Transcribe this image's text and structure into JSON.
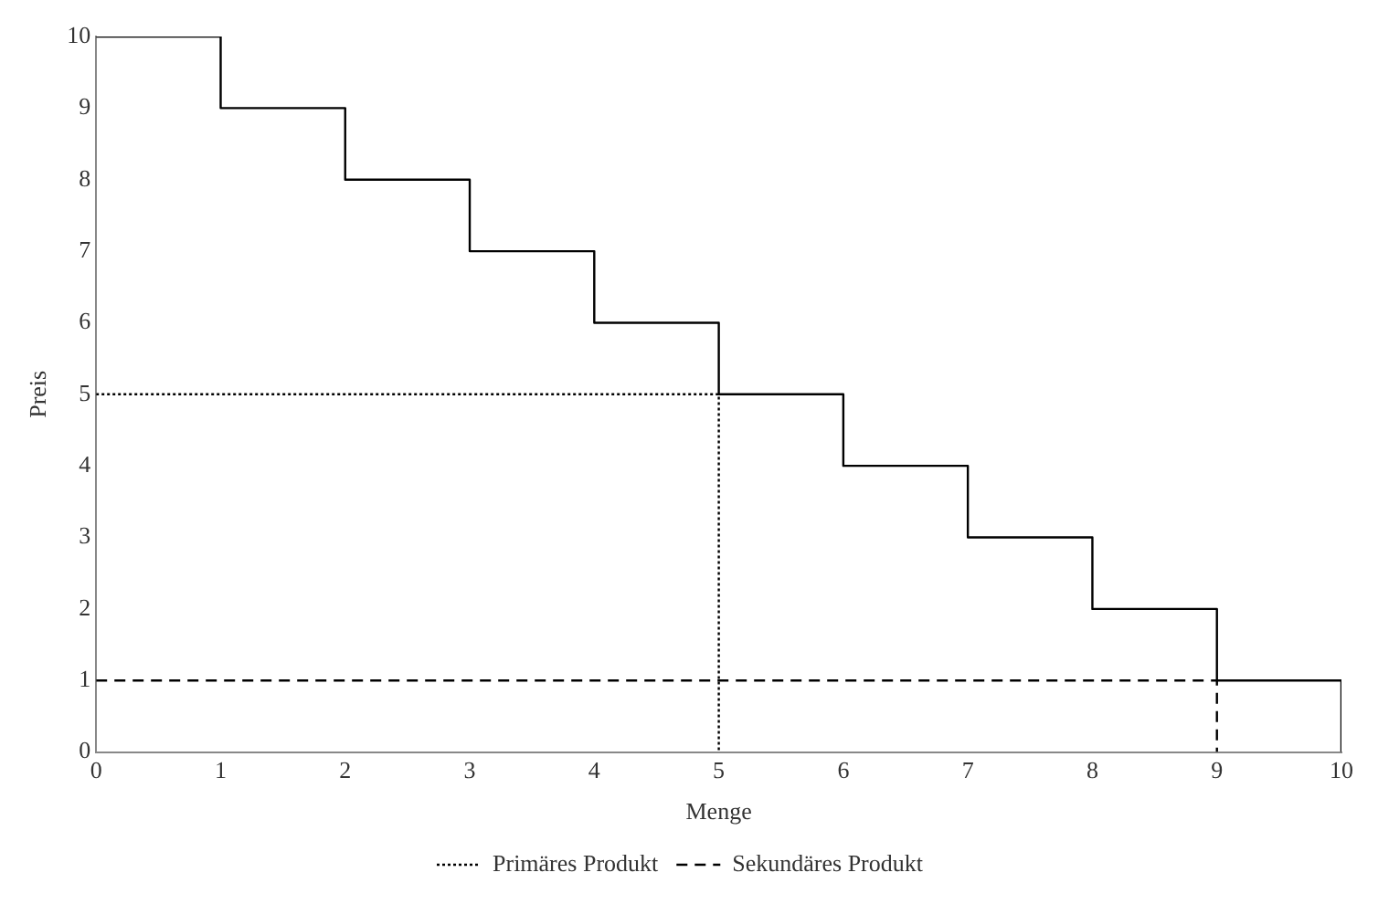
{
  "chart_data": {
    "type": "step",
    "xlabel": "Menge",
    "ylabel": "Preis",
    "xlim": [
      0,
      10
    ],
    "ylim": [
      0,
      10
    ],
    "xticks": [
      0,
      1,
      2,
      3,
      4,
      5,
      6,
      7,
      8,
      9,
      10
    ],
    "yticks": [
      0,
      1,
      2,
      3,
      4,
      5,
      6,
      7,
      8,
      9,
      10
    ],
    "grid": false,
    "legend": "bottom",
    "marker": "none",
    "series": [
      {
        "type": "step",
        "color": "#000000",
        "x": [
          0,
          1,
          2,
          3,
          4,
          5,
          6,
          7,
          8,
          9,
          10
        ],
        "values": [
          10,
          9,
          8,
          7,
          6,
          5,
          4,
          3,
          2,
          1,
          0
        ]
      },
      {
        "type": "line",
        "name": "Primäres Produkt",
        "color": "#000000",
        "line_style": "dotted",
        "x": [
          0,
          5,
          5
        ],
        "values": [
          5,
          5,
          0
        ]
      },
      {
        "type": "line",
        "name": "Sekundäres Produkt",
        "color": "#000000",
        "line_style": "dashed",
        "x": [
          0,
          9,
          9
        ],
        "values": [
          1,
          1,
          0
        ]
      }
    ]
  }
}
